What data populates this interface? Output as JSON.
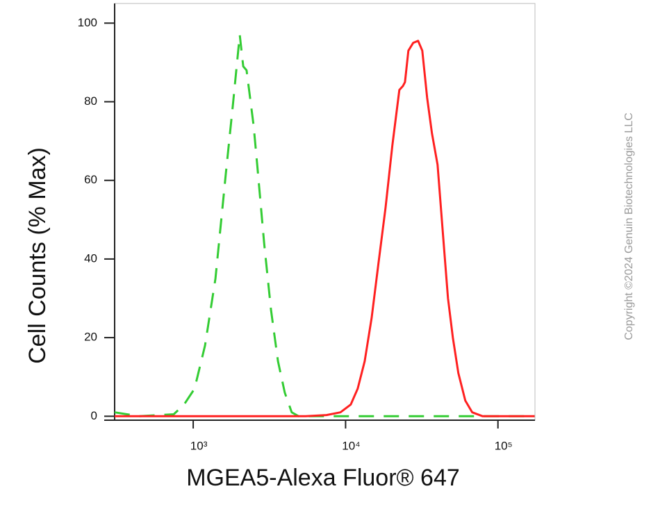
{
  "chart_data": {
    "type": "line",
    "xlabel": "MGEA5-Alexa Fluor® 647",
    "ylabel": "Cell Counts (% Max)",
    "watermark": "Copyright ©2024 Genuin Biotechnologies LLC",
    "xscale": "log",
    "xlim": [
      305,
      175000
    ],
    "ylim": [
      -1,
      105
    ],
    "xticks": [
      {
        "value": 1000,
        "label": "10³"
      },
      {
        "value": 10000,
        "label": "10⁴"
      },
      {
        "value": 100000,
        "label": "10⁵"
      }
    ],
    "yticks": [
      0,
      20,
      40,
      60,
      80,
      100
    ],
    "series": [
      {
        "color": "#33cc33",
        "dashed": true,
        "x": [
          305,
          442,
          745,
          872,
          1020,
          1195,
          1400,
          1640,
          1820,
          2020,
          2130,
          2240,
          2490,
          2630,
          2920,
          3240,
          3600,
          3990,
          4430,
          4920,
          10300,
          29300,
          174000
        ],
        "values": [
          1,
          0,
          0.5,
          3,
          7,
          18,
          35,
          62,
          79,
          97,
          89,
          88,
          74,
          64,
          44,
          27,
          14,
          6,
          1,
          0,
          0,
          0,
          0
        ]
      },
      {
        "color": "#ff2020",
        "dashed": false,
        "x": [
          305,
          5470,
          7500,
          9250,
          10820,
          12000,
          13350,
          14830,
          16450,
          18280,
          20300,
          22540,
          23770,
          24530,
          25840,
          27800,
          29920,
          31860,
          34290,
          36880,
          40150,
          43650,
          46990,
          50580,
          54970,
          61080,
          67820,
          79400,
          174000
        ],
        "values": [
          0,
          0,
          0.3,
          1,
          3,
          7,
          14,
          25,
          39,
          53,
          69,
          83,
          84,
          85,
          93,
          95,
          95.5,
          93,
          81,
          72,
          64,
          46,
          30,
          20,
          11,
          4,
          1,
          0,
          0
        ]
      }
    ]
  }
}
